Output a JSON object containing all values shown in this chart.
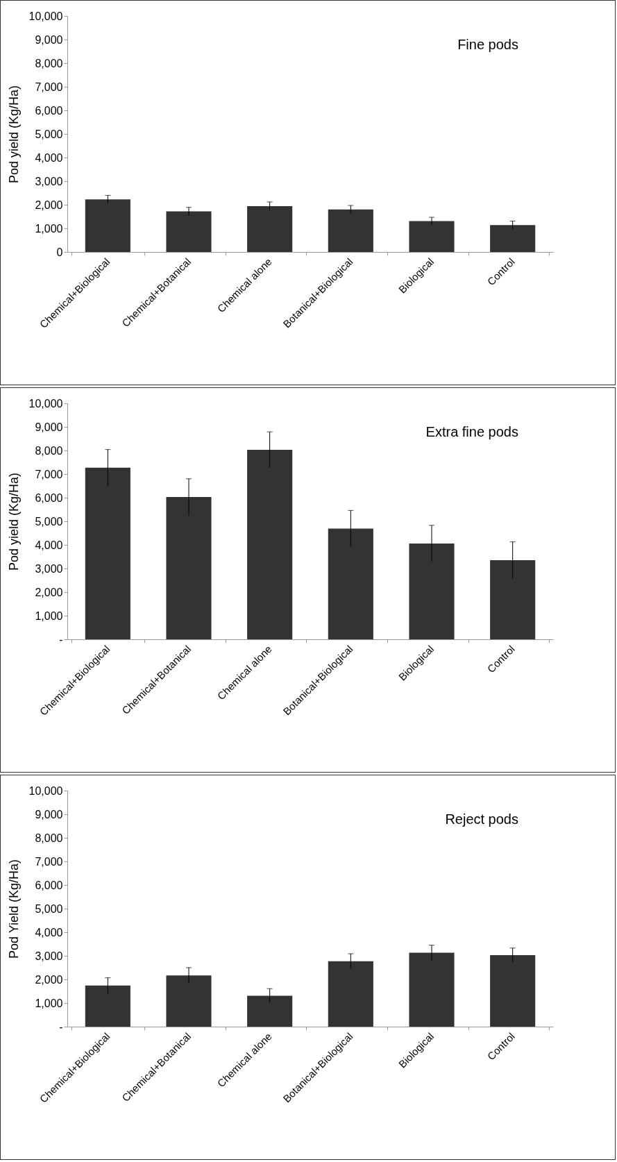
{
  "chart_data": [
    {
      "type": "bar",
      "title": "Fine pods",
      "ylabel": "Pod yield (Kg/Ha)",
      "categories": [
        "Chemical+Biological",
        "Chemical+Botanical",
        "Chemical alone",
        "Botanical+Biological",
        "Biological",
        "Control"
      ],
      "color": "#333333",
      "values": [
        2230,
        1720,
        1940,
        1800,
        1310,
        1140
      ],
      "errors": [
        170,
        170,
        180,
        170,
        160,
        170
      ],
      "ylim": [
        0,
        10000
      ],
      "yticks": [
        {
          "value": 0,
          "label": "0"
        },
        {
          "value": 1000,
          "label": "1,000"
        },
        {
          "value": 2000,
          "label": "2,000"
        },
        {
          "value": 3000,
          "label": "3,000"
        },
        {
          "value": 4000,
          "label": "4,000"
        },
        {
          "value": 5000,
          "label": "5,000"
        },
        {
          "value": 6000,
          "label": "6,000"
        },
        {
          "value": 7000,
          "label": "7,000"
        },
        {
          "value": 8000,
          "label": "8,000"
        },
        {
          "value": 9000,
          "label": "9,000"
        },
        {
          "value": 10000,
          "label": "10,000"
        }
      ]
    },
    {
      "type": "bar",
      "title": "Extra fine pods",
      "ylabel": "Pod yield (Kg/Ha)",
      "categories": [
        "Chemical+Biological",
        "Chemical+Botanical",
        "Chemical alone",
        "Botanical+Biological",
        "Biological",
        "Control"
      ],
      "color": "#333333",
      "values": [
        7270,
        6030,
        8030,
        4690,
        4060,
        3350
      ],
      "errors": [
        770,
        770,
        760,
        770,
        770,
        780
      ],
      "ylim": [
        0,
        10000
      ],
      "yticks": [
        {
          "value": 0,
          "label": "-"
        },
        {
          "value": 1000,
          "label": "1,000"
        },
        {
          "value": 2000,
          "label": "2,000"
        },
        {
          "value": 3000,
          "label": "3,000"
        },
        {
          "value": 4000,
          "label": "4,000"
        },
        {
          "value": 5000,
          "label": "5,000"
        },
        {
          "value": 6000,
          "label": "6,000"
        },
        {
          "value": 7000,
          "label": "7,000"
        },
        {
          "value": 8000,
          "label": "8,000"
        },
        {
          "value": 9000,
          "label": "9,000"
        },
        {
          "value": 10000,
          "label": "10,000"
        }
      ]
    },
    {
      "type": "bar",
      "title": "Reject pods",
      "ylabel": "Pod Yield (Kg/Ha)",
      "categories": [
        "Chemical+Biological",
        "Chemical+Botanical",
        "Chemical alone",
        "Botanical+Biological",
        "Biological",
        "Control"
      ],
      "color": "#333333",
      "values": [
        1740,
        2170,
        1310,
        2770,
        3130,
        3030
      ],
      "errors": [
        330,
        330,
        300,
        320,
        320,
        300
      ],
      "ylim": [
        0,
        10000
      ],
      "yticks": [
        {
          "value": 0,
          "label": "-"
        },
        {
          "value": 1000,
          "label": "1,000"
        },
        {
          "value": 2000,
          "label": "2,000"
        },
        {
          "value": 3000,
          "label": "3,000"
        },
        {
          "value": 4000,
          "label": "4,000"
        },
        {
          "value": 5000,
          "label": "5,000"
        },
        {
          "value": 6000,
          "label": "6,000"
        },
        {
          "value": 7000,
          "label": "7,000"
        },
        {
          "value": 8000,
          "label": "8,000"
        },
        {
          "value": 9000,
          "label": "9,000"
        },
        {
          "value": 10000,
          "label": "10,000"
        }
      ]
    }
  ]
}
